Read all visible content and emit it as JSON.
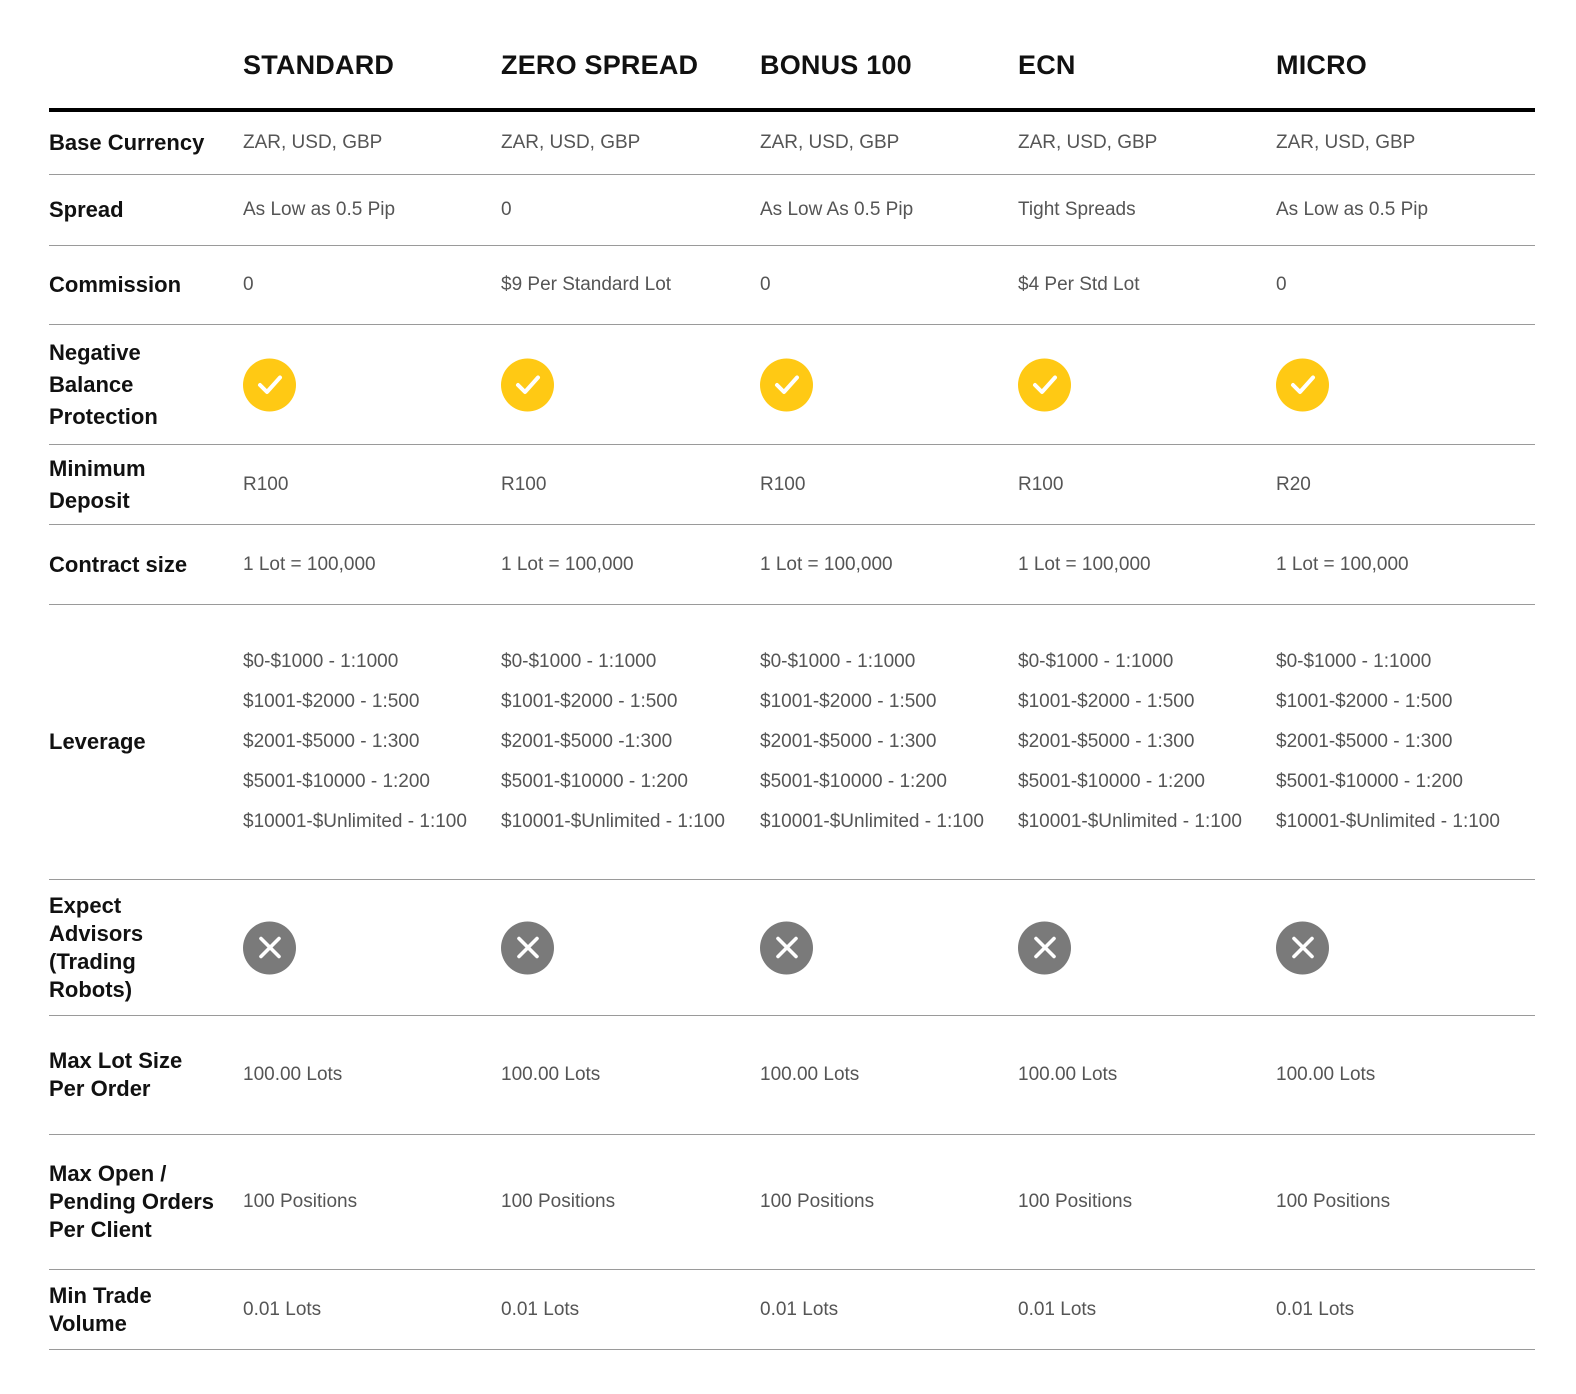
{
  "colors": {
    "check": "#FFC914",
    "cross": "#7A7A7A",
    "header_rule": "#000000",
    "row_rule": "#9A9A9A",
    "label_text": "#111111",
    "value_text": "#555555"
  },
  "columns": [
    "STANDARD",
    "ZERO SPREAD",
    "BONUS 100",
    "ECN",
    "MICRO"
  ],
  "rows": {
    "base_currency": {
      "label": "Base Currency",
      "values": [
        "ZAR, USD, GBP",
        "ZAR, USD, GBP",
        "ZAR, USD, GBP",
        "ZAR, USD, GBP",
        "ZAR, USD, GBP"
      ]
    },
    "spread": {
      "label": "Spread",
      "values": [
        "As Low as 0.5 Pip",
        "0",
        "As Low As 0.5 Pip",
        "Tight Spreads",
        "As Low as 0.5 Pip"
      ]
    },
    "commission": {
      "label": "Commission",
      "values": [
        "0",
        "$9 Per Standard Lot",
        "0",
        "$4 Per Std Lot",
        "0"
      ]
    },
    "negative_balance": {
      "label_lines": [
        "Negative",
        "Balance",
        "Protection"
      ],
      "icons": [
        "check-icon",
        "check-icon",
        "check-icon",
        "check-icon",
        "check-icon"
      ]
    },
    "minimum_deposit": {
      "label_lines": [
        "Minimum",
        "Deposit"
      ],
      "values": [
        "R100",
        "R100",
        "R100",
        "R100",
        "R20"
      ]
    },
    "contract_size": {
      "label": "Contract size",
      "values": [
        "1 Lot = 100,000",
        "1 Lot = 100,000",
        "1 Lot = 100,000",
        "1 Lot = 100,000",
        "1 Lot = 100,000"
      ]
    },
    "leverage": {
      "label": "Leverage",
      "values": [
        [
          "$0-$1000 - 1:1000",
          "$1001-$2000 - 1:500",
          "$2001-$5000 - 1:300",
          "$5001-$10000 - 1:200",
          "$10001-$Unlimited - 1:100"
        ],
        [
          "$0-$1000 - 1:1000",
          "$1001-$2000 - 1:500",
          "$2001-$5000 -1:300",
          "$5001-$10000 - 1:200",
          "$10001-$Unlimited - 1:100"
        ],
        [
          "$0-$1000 -  1:1000",
          "$1001-$2000 - 1:500",
          "$2001-$5000 - 1:300",
          "$5001-$10000 - 1:200",
          "$10001-$Unlimited - 1:100"
        ],
        [
          "$0-$1000 -  1:1000",
          "$1001-$2000 - 1:500",
          "$2001-$5000 - 1:300",
          "$5001-$10000 - 1:200",
          "$10001-$Unlimited - 1:100"
        ],
        [
          "$0-$1000 -  1:1000",
          "$1001-$2000 - 1:500",
          "$2001-$5000 - 1:300",
          "$5001-$10000 - 1:200",
          "$10001-$Unlimited - 1:100"
        ]
      ]
    },
    "expert_advisors": {
      "label_lines": [
        "Expect",
        "Advisors",
        "(Trading",
        "Robots)"
      ],
      "icons": [
        "cross-icon",
        "cross-icon",
        "cross-icon",
        "cross-icon",
        "cross-icon"
      ]
    },
    "max_lot_size": {
      "label_lines": [
        "Max Lot Size",
        "Per Order"
      ],
      "values": [
        "100.00 Lots",
        "100.00 Lots",
        "100.00 Lots",
        "100.00 Lots",
        "100.00 Lots"
      ]
    },
    "max_open_orders": {
      "label_lines": [
        "Max Open /",
        "Pending Orders",
        "Per Client"
      ],
      "values": [
        "100 Positions",
        "100 Positions",
        "100 Positions",
        "100 Positions",
        "100 Positions"
      ]
    },
    "min_trade_volume": {
      "label_lines": [
        "Min Trade",
        "Volume"
      ],
      "values": [
        "0.01 Lots",
        "0.01 Lots",
        "0.01 Lots",
        "0.01 Lots",
        "0.01 Lots"
      ]
    }
  }
}
